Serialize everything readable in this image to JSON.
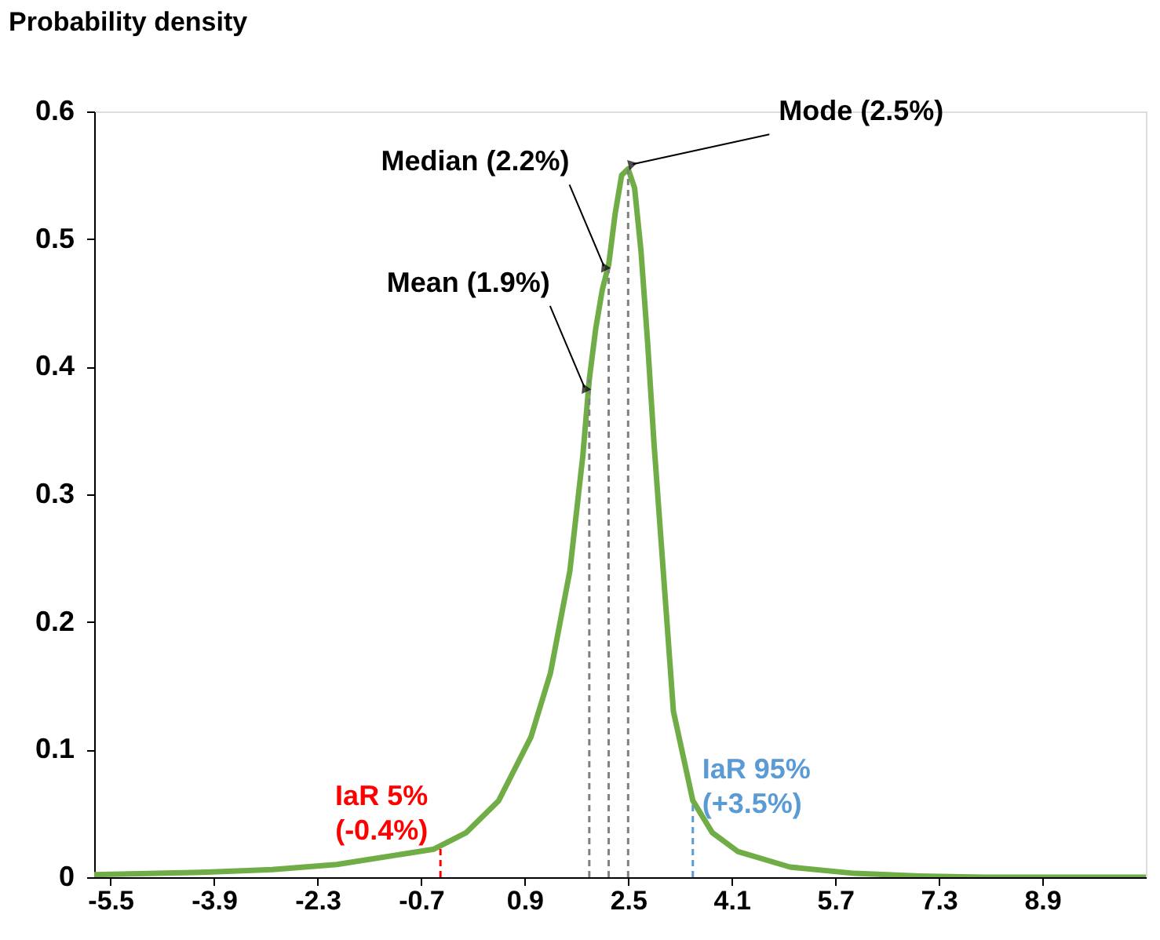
{
  "chart_data": {
    "type": "line",
    "ylabel": "Probability density",
    "x": [
      -5.75,
      -4,
      -3,
      -2,
      -1,
      -0.5,
      0,
      0.5,
      1.0,
      1.3,
      1.6,
      1.8,
      1.9,
      2.0,
      2.1,
      2.2,
      2.3,
      2.4,
      2.5,
      2.6,
      2.7,
      2.8,
      2.9,
      3.0,
      3.2,
      3.5,
      3.8,
      4.2,
      5,
      6,
      7,
      8,
      10.5
    ],
    "series": [
      {
        "color": "#70ad47",
        "values": [
          0.002,
          0.004,
          0.006,
          0.01,
          0.018,
          0.022,
          0.035,
          0.06,
          0.11,
          0.16,
          0.24,
          0.33,
          0.39,
          0.43,
          0.46,
          0.48,
          0.52,
          0.55,
          0.555,
          0.54,
          0.49,
          0.42,
          0.34,
          0.27,
          0.13,
          0.06,
          0.035,
          0.02,
          0.008,
          0.003,
          0.001,
          0,
          0
        ]
      }
    ],
    "xlim": [
      -5.75,
      10.5
    ],
    "xticks": [
      -5.5,
      -3.9,
      -2.3,
      -0.7,
      0.9,
      2.5,
      4.1,
      5.7,
      7.3,
      8.9
    ],
    "ylim": [
      0,
      0.6
    ],
    "yticks": [
      0,
      0.1,
      0.2,
      0.3,
      0.4,
      0.5,
      0.6
    ],
    "grid": false,
    "line_style": "solid",
    "marker": "none",
    "ref_lines": [
      {
        "axis": "x",
        "value": 1.9,
        "color": "#808080",
        "line_style": "dashed"
      },
      {
        "axis": "x",
        "value": 2.2,
        "color": "#808080",
        "line_style": "dashed"
      },
      {
        "axis": "x",
        "value": 2.5,
        "color": "#808080",
        "line_style": "dashed"
      },
      {
        "axis": "x",
        "value": -0.4,
        "color": "#ff0000",
        "line_style": "dashed",
        "label": "IaR 5%\n(-0.4%)"
      },
      {
        "axis": "x",
        "value": 3.5,
        "color": "#5b9bd5",
        "line_style": "dashed",
        "label": "IaR 95%\n(+3.5%)"
      }
    ],
    "annotations": [
      {
        "text": "Mean (1.9%)",
        "x": 1.9,
        "y": 0.38
      },
      {
        "text": "Median (2.2%)",
        "x": 2.2,
        "y": 0.475
      },
      {
        "text": "Mode (2.5%)",
        "x": 2.5,
        "y": 0.555
      }
    ]
  }
}
